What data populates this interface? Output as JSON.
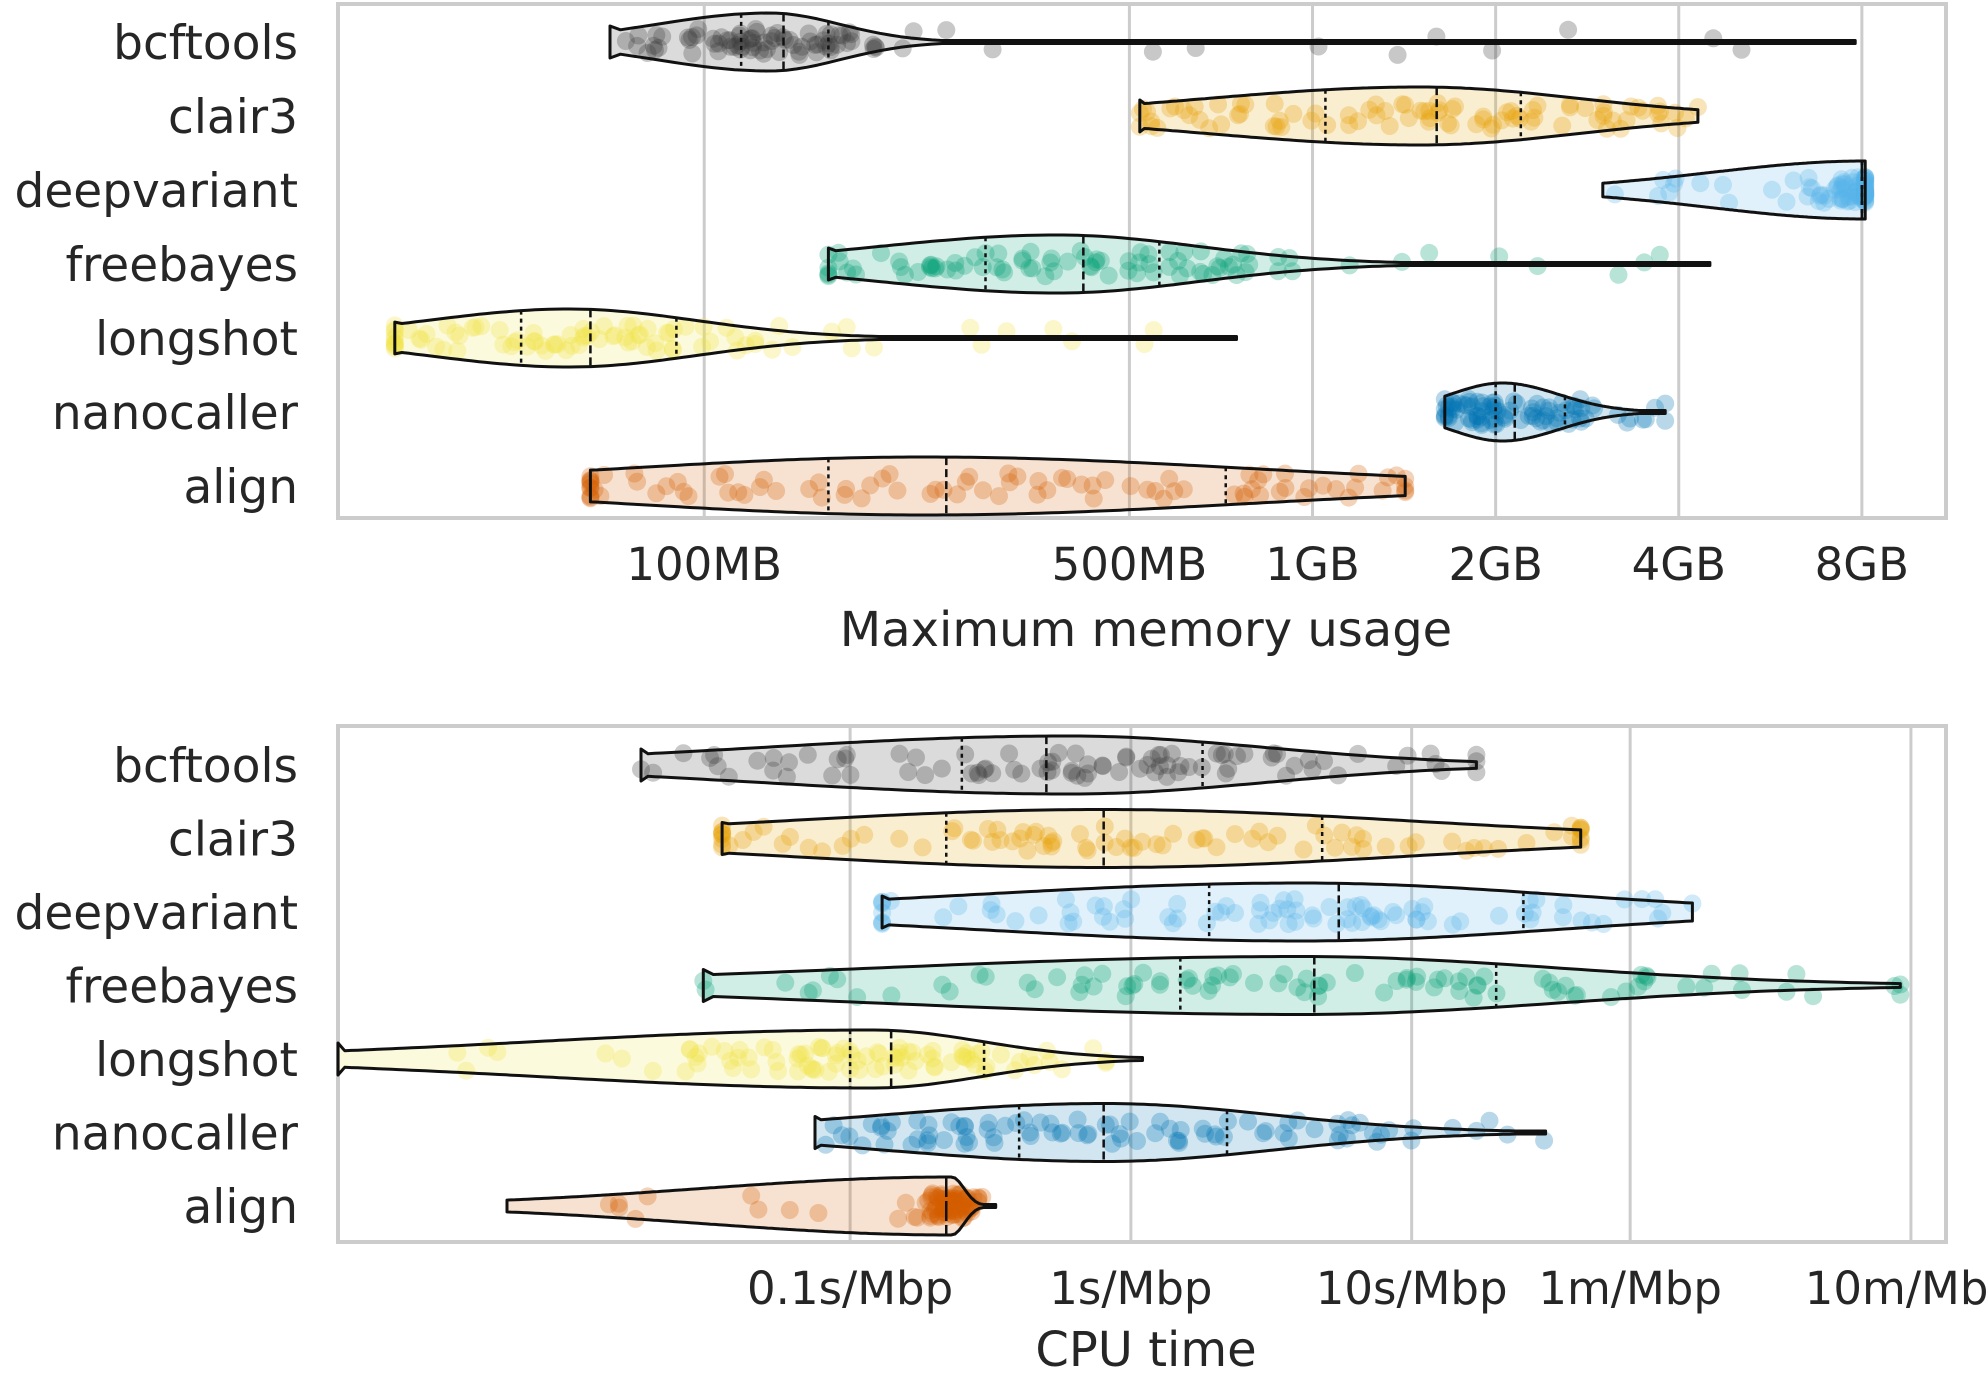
{
  "chart_data": [
    {
      "type": "violin",
      "xlabel": "Maximum memory usage",
      "xscale": "log2",
      "xlim": [
        25,
        11000
      ],
      "xticks": [
        {
          "value": 100,
          "label": "100MB"
        },
        {
          "value": 500,
          "label": "500MB"
        },
        {
          "value": 1000,
          "label": "1GB"
        },
        {
          "value": 2000,
          "label": "2GB"
        },
        {
          "value": 4000,
          "label": "4GB"
        },
        {
          "value": 8000,
          "label": "8GB"
        }
      ],
      "grid": "vertical",
      "categories": [
        "bcftools",
        "clair3",
        "deepvariant",
        "freebayes",
        "longshot",
        "nanocaller",
        "align"
      ],
      "series": [
        {
          "name": "bcftools",
          "color": "#3a3a3a",
          "min": 70,
          "q1": 115,
          "median": 135,
          "q3": 160,
          "max": 7800,
          "peak": 128,
          "cut_start": true
        },
        {
          "name": "clair3",
          "color": "#e69f00",
          "min": 520,
          "q1": 1050,
          "median": 1600,
          "q3": 2200,
          "max": 4300,
          "peak": 1500,
          "cut_start": true
        },
        {
          "name": "deepvariant",
          "color": "#56b4e9",
          "min": 3000,
          "q1": 8000,
          "median": 8000,
          "q3": 8000,
          "max": 8100,
          "peak": 8100,
          "cut_start": false
        },
        {
          "name": "freebayes",
          "color": "#009e73",
          "min": 160,
          "q1": 290,
          "median": 420,
          "q3": 560,
          "max": 4500,
          "peak": 380,
          "cut_start": true
        },
        {
          "name": "longshot",
          "color": "#f0e442",
          "min": 31,
          "q1": 50,
          "median": 65,
          "q3": 90,
          "max": 750,
          "peak": 60,
          "cut_start": true
        },
        {
          "name": "nanocaller",
          "color": "#0072b2",
          "min": 1650,
          "q1": 2000,
          "median": 2150,
          "q3": 2600,
          "max": 3800,
          "peak": 2050,
          "cut_start": false
        },
        {
          "name": "align",
          "color": "#d55e00",
          "min": 65,
          "q1": 160,
          "median": 250,
          "q3": 720,
          "max": 1420,
          "peak": 230,
          "cut_start": true
        }
      ]
    },
    {
      "type": "violin",
      "xlabel": "CPU time",
      "xscale": "log10",
      "xlim": [
        0.0015,
        800
      ],
      "xticks": [
        {
          "value": 0.1,
          "label": "0.1s/Mbp"
        },
        {
          "value": 1,
          "label": "1s/Mbp"
        },
        {
          "value": 10,
          "label": "10s/Mbp"
        },
        {
          "value": 60,
          "label": "1m/Mbp"
        },
        {
          "value": 600,
          "label": "10m/Mbp"
        }
      ],
      "grid": "vertical",
      "categories": [
        "bcftools",
        "clair3",
        "deepvariant",
        "freebayes",
        "longshot",
        "nanocaller",
        "align"
      ],
      "series": [
        {
          "name": "bcftools",
          "color": "#3a3a3a",
          "min": 0.018,
          "q1": 0.25,
          "median": 0.5,
          "q3": 1.8,
          "max": 17,
          "peak": 0.6,
          "cut_start": true
        },
        {
          "name": "clair3",
          "color": "#e69f00",
          "min": 0.035,
          "q1": 0.22,
          "median": 0.8,
          "q3": 4.8,
          "max": 40,
          "peak": 0.8,
          "cut_start": true
        },
        {
          "name": "deepvariant",
          "color": "#56b4e9",
          "min": 0.13,
          "q1": 1.9,
          "median": 5.5,
          "q3": 25,
          "max": 100,
          "peak": 4,
          "cut_start": true
        },
        {
          "name": "freebayes",
          "color": "#009e73",
          "min": 0.03,
          "q1": 1.5,
          "median": 4.5,
          "q3": 20,
          "max": 550,
          "peak": 4,
          "cut_start": true
        },
        {
          "name": "longshot",
          "color": "#f0e442",
          "min": 0.0015,
          "q1": 0.1,
          "median": 0.14,
          "q3": 0.3,
          "max": 1.1,
          "peak": 0.12,
          "cut_start": true
        },
        {
          "name": "nanocaller",
          "color": "#0072b2",
          "min": 0.075,
          "q1": 0.4,
          "median": 0.8,
          "q3": 2.2,
          "max": 30,
          "peak": 0.8,
          "cut_start": true
        },
        {
          "name": "align",
          "color": "#d55e00",
          "min": 0.006,
          "q1": 0.22,
          "median": 0.22,
          "q3": 0.22,
          "max": 0.33,
          "peak": 0.23,
          "cut_start": false
        }
      ]
    }
  ]
}
